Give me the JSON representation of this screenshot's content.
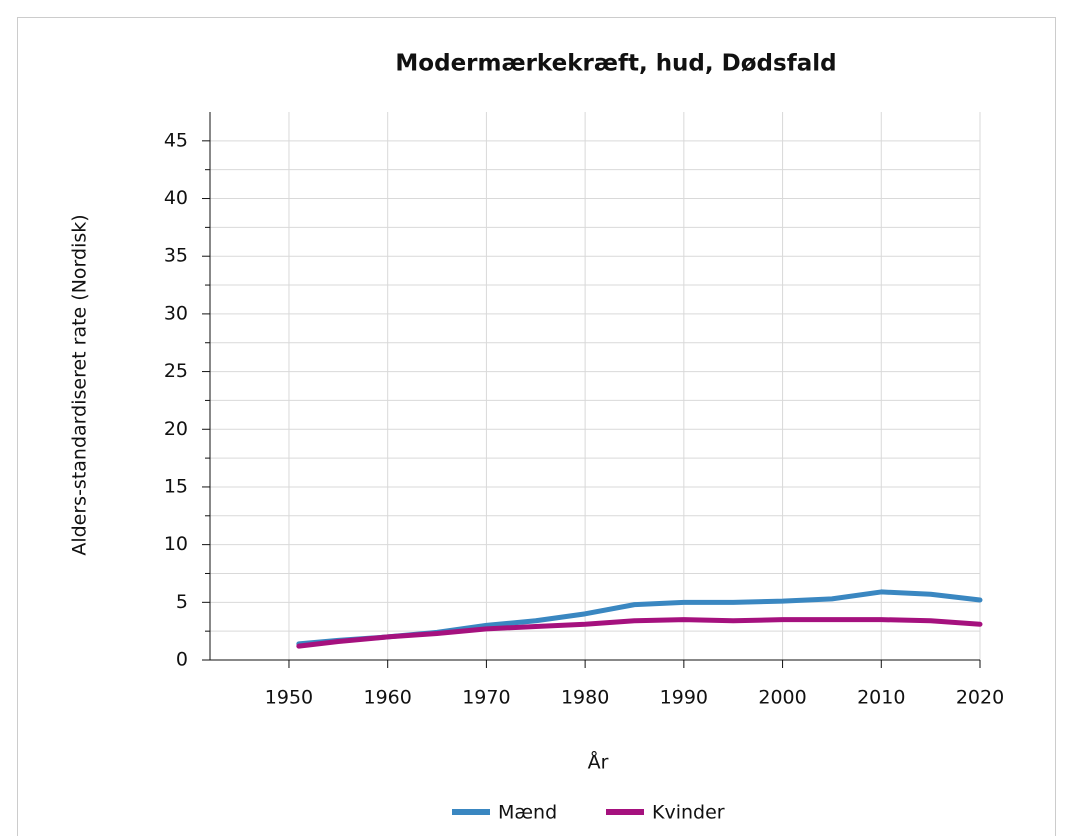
{
  "chart_data": {
    "type": "line",
    "title": "Modermærkekræft, hud, Dødsfald",
    "x_label": "År",
    "y_label": "Alders-standardiseret rate (Nordisk)",
    "x": [
      1951,
      1955,
      1960,
      1965,
      1970,
      1975,
      1980,
      1985,
      1990,
      1995,
      2000,
      2005,
      2010,
      2015,
      2020
    ],
    "series": [
      {
        "name": "Mænd",
        "color": "#3a87c1",
        "values": [
          1.4,
          1.7,
          2.0,
          2.4,
          3.0,
          3.4,
          4.0,
          4.8,
          5.0,
          5.0,
          5.1,
          5.3,
          5.9,
          5.7,
          5.2
        ]
      },
      {
        "name": "Kvinder",
        "color": "#a5117e",
        "values": [
          1.2,
          1.6,
          2.0,
          2.3,
          2.7,
          2.9,
          3.1,
          3.4,
          3.5,
          3.4,
          3.5,
          3.5,
          3.5,
          3.4,
          3.1
        ]
      }
    ],
    "xlim": [
      1942,
      2020
    ],
    "xticks": [
      1950,
      1960,
      1970,
      1980,
      1990,
      2000,
      2010,
      2020
    ],
    "ylim": [
      0,
      47.5
    ],
    "yticks": [
      0,
      5,
      10,
      15,
      20,
      25,
      30,
      35,
      40,
      45
    ],
    "yticks_minor": [
      2.5,
      7.5,
      12.5,
      17.5,
      22.5,
      27.5,
      32.5,
      37.5,
      42.5
    ],
    "grid": true,
    "legend": "bottom"
  }
}
